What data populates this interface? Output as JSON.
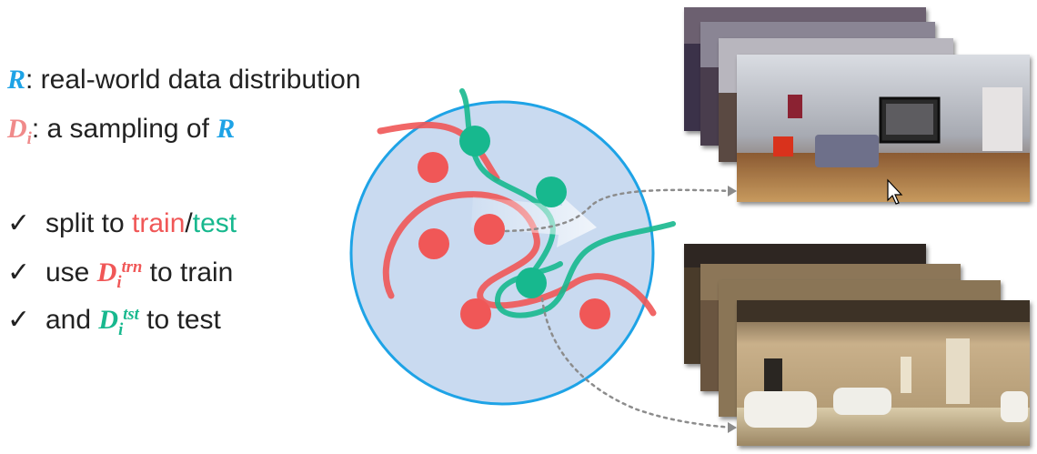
{
  "colors": {
    "r_blue": "#1ea3e6",
    "d_pink": "#f08a8a",
    "train_red": "#f05757",
    "test_green": "#17b88e",
    "circle_fill": "#c9daf0",
    "circle_stroke": "#1ea3e6"
  },
  "legend": {
    "r_symbol": "R",
    "r_text": ": real-world data distribution",
    "d_symbol": "D",
    "d_sub": "i",
    "d_text": ": a sampling of ",
    "d_ref": "R"
  },
  "bullets": {
    "check_icon": "✓",
    "split": {
      "prefix": "split to ",
      "train": "train",
      "slash": "/",
      "test": "test"
    },
    "use": {
      "prefix": "use ",
      "symbol": "D",
      "sub": "i",
      "sup": "trn",
      "suffix": " to train"
    },
    "and": {
      "prefix": "and ",
      "symbol": "D",
      "sub": "i",
      "sup": "tst",
      "suffix": " to test"
    }
  },
  "panoramas": {
    "top_stack": [
      "bedroom panorama 1",
      "bedroom panorama 2",
      "bedroom panorama 3",
      "bedroom panorama 4"
    ],
    "bottom_stack": [
      "bathroom panorama 1",
      "bathroom panorama 2",
      "bathroom panorama 3",
      "bathroom panorama 4"
    ]
  }
}
